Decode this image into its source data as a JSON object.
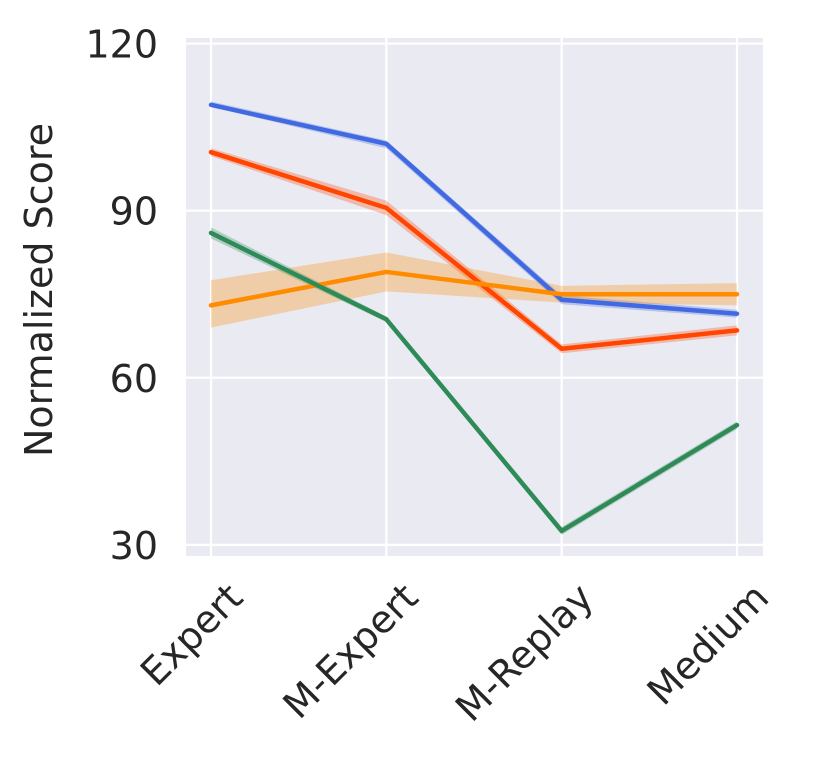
{
  "chart_data": {
    "type": "line",
    "title": "",
    "xlabel": "",
    "ylabel": "Normalized Score",
    "categories": [
      "Expert",
      "M-Expert",
      "M-Replay",
      "Medium"
    ],
    "yticks": [
      30,
      60,
      90,
      120
    ],
    "ylim": [
      28,
      121
    ],
    "grid": true,
    "legend": "none",
    "series": [
      {
        "color": "#4169e1",
        "values": [
          109,
          102,
          74,
          71.5
        ],
        "lower": [
          108.6,
          101.2,
          73.2,
          70.8
        ],
        "upper": [
          109.6,
          102.6,
          74.8,
          72.2
        ]
      },
      {
        "color": "#ff4500",
        "values": [
          100.5,
          90.5,
          65.2,
          68.5
        ],
        "lower": [
          99.8,
          89.2,
          64.4,
          67.6
        ],
        "upper": [
          101.2,
          91.8,
          66.0,
          69.4
        ]
      },
      {
        "color": "#ff8c00",
        "values": [
          73,
          79,
          75,
          75
        ],
        "lower": [
          69.0,
          75.5,
          73.5,
          73.0
        ],
        "upper": [
          77.5,
          82.5,
          76.5,
          77.0
        ]
      },
      {
        "color": "#2e8b57",
        "values": [
          86,
          70.5,
          32.5,
          51.5
        ],
        "lower": [
          85.0,
          70.0,
          31.8,
          50.8
        ],
        "upper": [
          87.0,
          71.0,
          33.2,
          52.2
        ]
      }
    ]
  }
}
